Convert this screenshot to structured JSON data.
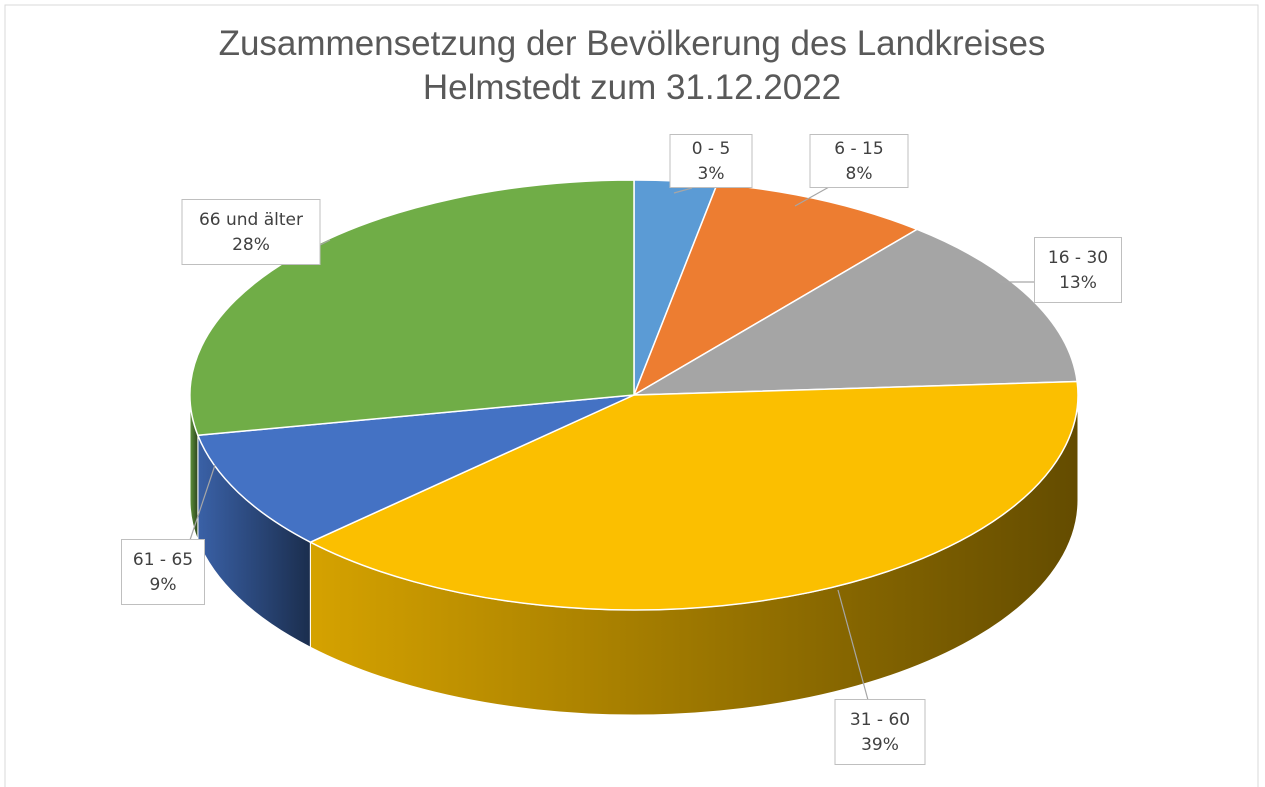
{
  "chart_data": {
    "type": "pie",
    "title": "Zusammensetzung der Bevölkerung des Landkreises Helmstedt zum 31.12.2022",
    "categories": [
      "0 - 5",
      "6 - 15",
      "16 - 30",
      "31 - 60",
      "61 - 65",
      "66 und älter"
    ],
    "values": [
      3,
      8,
      13,
      39,
      9,
      28
    ],
    "value_labels": [
      "3%",
      "8%",
      "13%",
      "39%",
      "9%",
      "28%"
    ],
    "colors": [
      "#5b9bd5",
      "#ed7d31",
      "#a5a5a5",
      "#fbbf00",
      "#4472c4",
      "#70ad47"
    ]
  }
}
